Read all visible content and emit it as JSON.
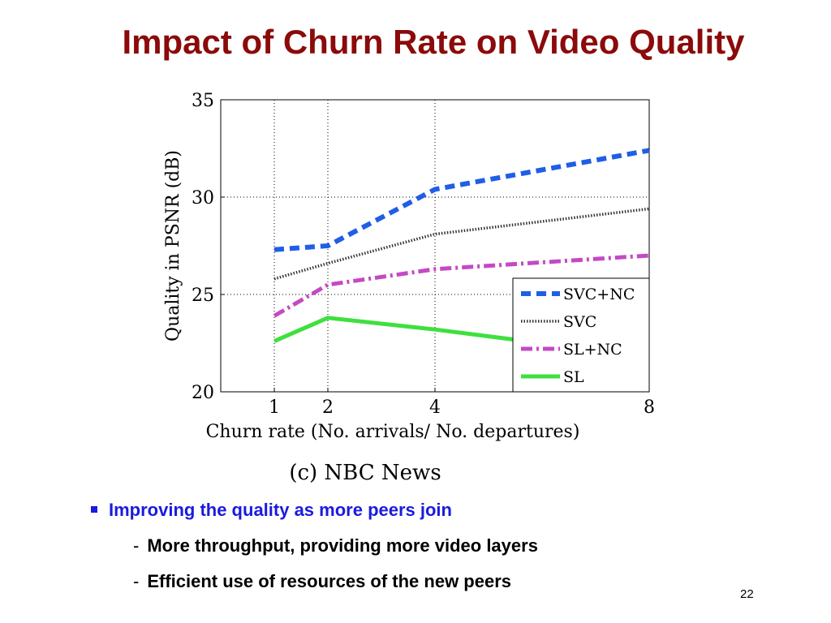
{
  "slide": {
    "title": "Impact of Churn Rate on Video Quality",
    "bullets": {
      "main": "Improving the quality as more peers join",
      "subs": [
        "More throughput, providing more video layers",
        "Efficient use of resources of the new peers"
      ]
    },
    "page_number": "22",
    "sub_dash": "-",
    "colors": {
      "title": "#8b0a0a",
      "bullet": "#1a1ae0"
    }
  },
  "chart_data": {
    "type": "line",
    "caption": "(c) NBC News",
    "xlabel": "Churn rate (No. arrivals/ No. departures)",
    "ylabel": "Quality in PSNR (dB)",
    "x_ticks": [
      1,
      2,
      4,
      8
    ],
    "y_ticks": [
      20,
      25,
      30,
      35
    ],
    "ylim": [
      20,
      35
    ],
    "grid": "dotted",
    "legend_position": "bottom-right",
    "series": [
      {
        "name": "SVC+NC",
        "x": [
          1,
          2,
          4,
          8
        ],
        "y": [
          27.3,
          27.5,
          30.4,
          32.4
        ],
        "color": "#1f5ee6",
        "style": "dashed"
      },
      {
        "name": "SVC",
        "x": [
          1,
          2,
          4,
          8
        ],
        "y": [
          25.8,
          26.6,
          28.1,
          29.4
        ],
        "color": "#333333",
        "style": "dotted"
      },
      {
        "name": "SL+NC",
        "x": [
          1,
          2,
          4,
          8
        ],
        "y": [
          23.9,
          25.5,
          26.3,
          27.0
        ],
        "color": "#c449c4",
        "style": "dashdot"
      },
      {
        "name": "SL",
        "x": [
          1,
          2,
          4,
          8
        ],
        "y": [
          22.6,
          23.8,
          23.2,
          21.8
        ],
        "color": "#3ee03e",
        "style": "solid"
      }
    ]
  }
}
